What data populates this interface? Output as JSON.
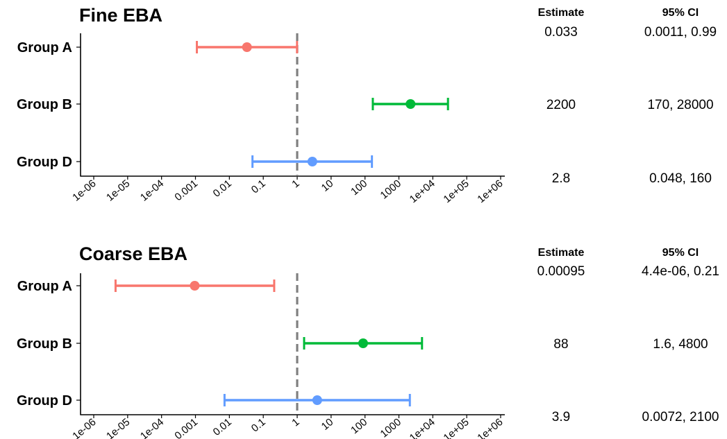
{
  "chart_data": [
    {
      "type": "forest",
      "title": "Fine EBA",
      "x_scale": "log10",
      "xlim": [
        1e-06,
        1000000.0
      ],
      "x_ticks": [
        "1e-06",
        "1e-05",
        "1e-04",
        "0.001",
        "0.01",
        "0.1",
        "1",
        "10",
        "100",
        "1000",
        "1e+04",
        "1e+05",
        "1e+06"
      ],
      "reference_line": 1,
      "grid": false,
      "table_headers": [
        "Estimate",
        "95% CI"
      ],
      "rows": [
        {
          "group": "Group A",
          "estimate": 0.033,
          "lower": 0.0011,
          "upper": 0.99,
          "color": "#F8766D",
          "estimate_text": "0.033",
          "ci_text": "0.0011, 0.99"
        },
        {
          "group": "Group B",
          "estimate": 2200,
          "lower": 170,
          "upper": 28000,
          "color": "#00BA38",
          "estimate_text": "2200",
          "ci_text": "170, 28000"
        },
        {
          "group": "Group D",
          "estimate": 2.8,
          "lower": 0.048,
          "upper": 160,
          "color": "#619CFF",
          "estimate_text": "2.8",
          "ci_text": "0.048, 160"
        }
      ]
    },
    {
      "type": "forest",
      "title": "Coarse EBA",
      "x_scale": "log10",
      "xlim": [
        1e-06,
        1000000.0
      ],
      "x_ticks": [
        "1e-06",
        "1e-05",
        "1e-04",
        "0.001",
        "0.01",
        "0.1",
        "1",
        "10",
        "100",
        "1000",
        "1e+04",
        "1e+05",
        "1e+06"
      ],
      "reference_line": 1,
      "grid": false,
      "table_headers": [
        "Estimate",
        "95% CI"
      ],
      "rows": [
        {
          "group": "Group A",
          "estimate": 0.00095,
          "lower": 4.4e-06,
          "upper": 0.21,
          "color": "#F8766D",
          "estimate_text": "0.00095",
          "ci_text": "4.4e-06, 0.21"
        },
        {
          "group": "Group B",
          "estimate": 88,
          "lower": 1.6,
          "upper": 4800,
          "color": "#00BA38",
          "estimate_text": "88",
          "ci_text": "1.6, 4800"
        },
        {
          "group": "Group D",
          "estimate": 3.9,
          "lower": 0.0072,
          "upper": 2100,
          "color": "#619CFF",
          "estimate_text": "3.9",
          "ci_text": "0.0072, 2100"
        }
      ]
    }
  ]
}
